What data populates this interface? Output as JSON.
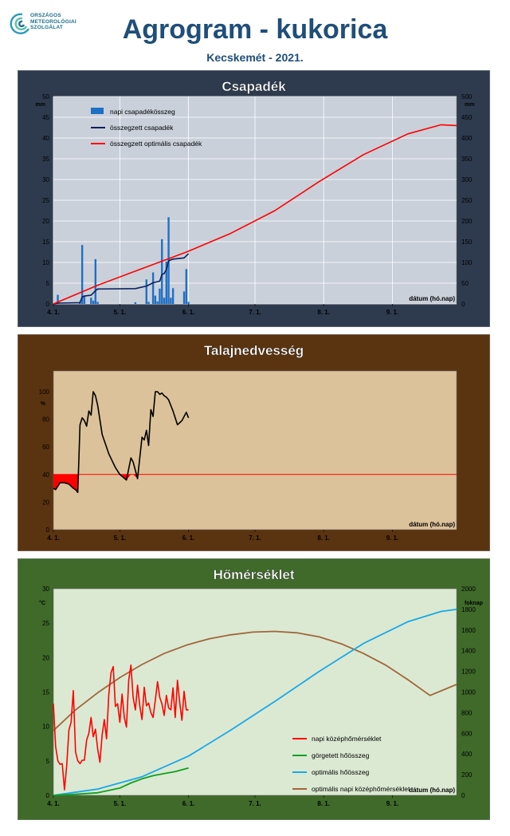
{
  "header": {
    "logo_lines": [
      "ORSZÁGOS",
      "METEOROLÓGIAI",
      "SZOLGÁLAT"
    ],
    "title": "Agrogram - kukorica",
    "subtitle": "Kecskemét - 2021."
  },
  "colors": {
    "panel1_frame": "#2e3b4e",
    "panel1_plot": "#c9d0d9",
    "panel2_frame": "#5a3410",
    "panel2_plot": "#dcc29a",
    "panel3_frame": "#3f6a2a",
    "panel3_plot": "#dbe9d2",
    "red": "#ff0000",
    "navy": "#0b1f5c",
    "blue_bar": "#1f6fc4",
    "black": "#000000",
    "green": "#10a020",
    "cyan": "#18a8e8",
    "brown": "#a0663a"
  },
  "chart_data": [
    {
      "type": "bar+line",
      "title": "Csapadék",
      "x_axis": {
        "ticks": [
          "4. 1.",
          "5. 1.",
          "6. 1.",
          "7. 1.",
          "8. 1.",
          "9. 1."
        ],
        "tick_days": [
          0,
          30,
          61,
          91,
          122,
          153
        ],
        "range_days": [
          0,
          182
        ],
        "label": "dátum (hó.nap)"
      },
      "y_left": {
        "unit": "mm",
        "range": [
          0,
          50
        ],
        "ticks": [
          0,
          5,
          10,
          15,
          20,
          25,
          30,
          35,
          40,
          45,
          50
        ]
      },
      "y_right": {
        "unit": "mm",
        "range": [
          0,
          500
        ],
        "ticks": [
          0,
          50,
          100,
          150,
          200,
          250,
          300,
          350,
          400,
          450,
          500
        ]
      },
      "legend": [
        "napi csapadékösszeg",
        "összegzett csapadék",
        "összegzett optimális  csapadék"
      ],
      "grid": true,
      "bars": {
        "name": "napi csapadékösszeg",
        "days": [
          2,
          12,
          13,
          14,
          17,
          18,
          19,
          20,
          37,
          42,
          43,
          45,
          46,
          47,
          48,
          49,
          50,
          51,
          52,
          53,
          54,
          59,
          60,
          61
        ],
        "values": [
          2.2,
          0.5,
          14.2,
          2.0,
          1.5,
          0.8,
          10.8,
          0.5,
          0.4,
          5.9,
          0.5,
          7.6,
          2.0,
          0.6,
          3.7,
          15.6,
          1.5,
          10.2,
          20.9,
          1.5,
          3.8,
          3.0,
          8.4,
          0.5
        ]
      },
      "series": [
        {
          "name": "összegzett csapadék",
          "axis": "right",
          "x": [
            0,
            2,
            12,
            13,
            14,
            17,
            19,
            20,
            37,
            42,
            45,
            48,
            49,
            50,
            51,
            52,
            54,
            59,
            61
          ],
          "y": [
            0,
            2,
            3,
            17,
            19,
            21,
            32,
            36,
            37,
            43,
            51,
            55,
            71,
            73,
            83,
            104,
            108,
            111,
            121
          ]
        },
        {
          "name": "összegzett optimális  csapadék",
          "axis": "right",
          "x": [
            0,
            20,
            40,
            60,
            80,
            100,
            120,
            140,
            160,
            175,
            182
          ],
          "y": [
            0,
            45,
            85,
            125,
            170,
            225,
            295,
            360,
            410,
            432,
            430
          ]
        }
      ]
    },
    {
      "type": "line",
      "title": "Talajnedvesség",
      "x_axis": {
        "ticks": [
          "4. 1.",
          "5. 1.",
          "6. 1.",
          "7. 1.",
          "8. 1.",
          "9. 1."
        ],
        "tick_days": [
          0,
          30,
          61,
          91,
          122,
          153
        ],
        "range_days": [
          0,
          182
        ],
        "label": "dátum (hó.nap)"
      },
      "y_left": {
        "unit": "%",
        "range": [
          0,
          115
        ],
        "ticks": [
          0,
          20,
          40,
          60,
          80,
          100
        ]
      },
      "grid": false,
      "threshold": {
        "value": 40,
        "range_days": [
          0,
          182
        ],
        "fill_below": true
      },
      "series": [
        {
          "name": "talajnedvesség",
          "x": [
            0,
            1,
            3,
            5,
            7,
            9,
            10,
            11,
            12,
            13,
            14,
            15,
            16,
            17,
            18,
            19,
            20,
            22,
            25,
            28,
            30,
            33,
            35,
            36,
            38,
            40,
            41,
            42,
            43,
            44,
            45,
            46,
            47,
            48,
            49,
            50,
            51,
            52,
            54,
            56,
            58,
            60,
            61
          ],
          "y": [
            30,
            29,
            34,
            34,
            33,
            30,
            29,
            27,
            76,
            81,
            79,
            75,
            86,
            83,
            100,
            97,
            90,
            69,
            55,
            45,
            40,
            36,
            52,
            49,
            37,
            67,
            65,
            72,
            61,
            87,
            82,
            100,
            100,
            98,
            99,
            97,
            96,
            94,
            86,
            76,
            79,
            85,
            81
          ]
        }
      ]
    },
    {
      "type": "line",
      "title": "Hőmérséklet",
      "x_axis": {
        "ticks": [
          "4. 1.",
          "5. 1.",
          "6. 1.",
          "7. 1.",
          "8. 1.",
          "9. 1."
        ],
        "tick_days": [
          0,
          30,
          61,
          91,
          122,
          153
        ],
        "range_days": [
          0,
          182
        ],
        "label": "dátum (hó.nap)"
      },
      "y_left": {
        "unit": "°C",
        "range": [
          0,
          30
        ],
        "ticks": [
          0,
          5,
          10,
          15,
          20,
          25,
          30
        ]
      },
      "y_right": {
        "unit": "foknap",
        "range": [
          0,
          2000
        ],
        "ticks": [
          0,
          200,
          400,
          600,
          800,
          1000,
          1200,
          1400,
          1600,
          1800,
          2000
        ]
      },
      "legend": [
        "napi középhőmérséklet",
        "görgetett hőösszeg",
        "optimális hőösszeg",
        "optimális napi középhőmérséklet"
      ],
      "grid": false,
      "series": [
        {
          "name": "napi középhőmérséklet",
          "axis": "left",
          "x": [
            0,
            1,
            2,
            3,
            4,
            5,
            6,
            7,
            8,
            9,
            10,
            11,
            12,
            13,
            14,
            15,
            16,
            17,
            18,
            19,
            20,
            21,
            22,
            23,
            24,
            25,
            26,
            27,
            28,
            29,
            30,
            31,
            32,
            33,
            34,
            35,
            36,
            37,
            38,
            39,
            40,
            41,
            42,
            43,
            44,
            45,
            46,
            47,
            48,
            49,
            50,
            51,
            52,
            53,
            54,
            55,
            56,
            57,
            58,
            59,
            60,
            61
          ],
          "y": [
            13.3,
            7.1,
            5.0,
            4.5,
            4.6,
            0.8,
            4.3,
            9.5,
            10.6,
            15.2,
            6.3,
            5.0,
            4.6,
            5.1,
            5.1,
            8.0,
            9.0,
            11.3,
            8.5,
            9.6,
            6.7,
            4.8,
            8.8,
            11.0,
            8.2,
            14.6,
            17.8,
            18.7,
            12.9,
            13.3,
            10.6,
            14.7,
            11.3,
            9.9,
            16.7,
            18.9,
            14.2,
            12.4,
            16.0,
            13.0,
            11.0,
            15.7,
            13.0,
            13.4,
            12.0,
            11.3,
            13.8,
            16.5,
            14.2,
            13.3,
            11.6,
            14.5,
            12.7,
            12.4,
            15.6,
            11.3,
            16.7,
            13.5,
            10.9,
            15.1,
            12.4,
            12.4
          ]
        },
        {
          "name": "görgetett hőösszeg",
          "axis": "right",
          "x": [
            0,
            10,
            20,
            30,
            35,
            40,
            45,
            50,
            55,
            61
          ],
          "y": [
            0,
            10,
            25,
            70,
            120,
            160,
            190,
            210,
            230,
            265
          ]
        },
        {
          "name": "optimális hőösszeg",
          "axis": "right",
          "x": [
            0,
            20,
            40,
            61,
            80,
            100,
            120,
            140,
            160,
            175,
            182
          ],
          "y": [
            0,
            60,
            180,
            380,
            630,
            910,
            1200,
            1470,
            1680,
            1780,
            1800
          ]
        },
        {
          "name": "optimális napi középhőmérséklet",
          "axis": "left",
          "x": [
            0,
            10,
            20,
            30,
            40,
            50,
            60,
            70,
            80,
            90,
            100,
            110,
            120,
            130,
            140,
            150,
            160,
            170,
            182
          ],
          "y": [
            9.4,
            12.4,
            14.9,
            17.1,
            19.0,
            20.6,
            21.8,
            22.7,
            23.3,
            23.7,
            23.8,
            23.6,
            23.0,
            22.0,
            20.6,
            18.9,
            16.8,
            14.5,
            16.1
          ]
        }
      ]
    }
  ]
}
